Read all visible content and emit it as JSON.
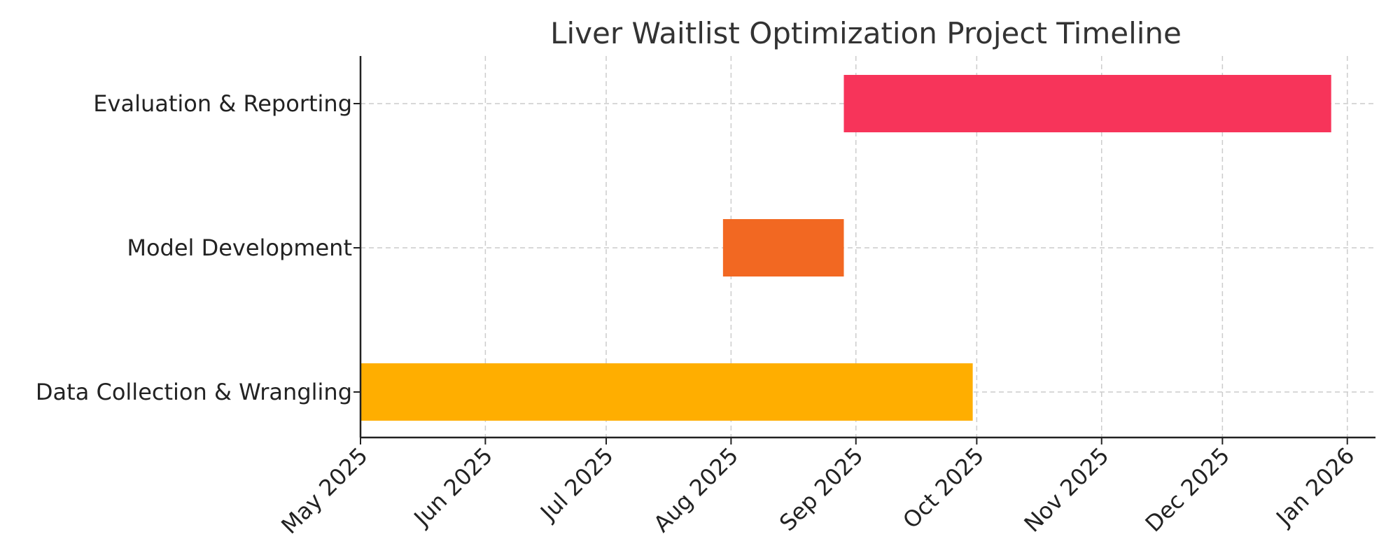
{
  "chart_data": {
    "type": "gantt",
    "title": "Liver Waitlist Optimization Project Timeline",
    "xlabel": "",
    "ylabel": "",
    "x_ticks": [
      "2025-05-01",
      "2025-06-01",
      "2025-07-01",
      "2025-08-01",
      "2025-09-01",
      "2025-10-01",
      "2025-11-01",
      "2025-12-01",
      "2026-01-01"
    ],
    "x_tick_labels": [
      "May 2025",
      "Jun 2025",
      "Jul 2025",
      "Aug 2025",
      "Sep 2025",
      "Oct 2025",
      "Nov 2025",
      "Dec 2025",
      "Jan 2026"
    ],
    "xlim": [
      "2025-05-01",
      "2026-01-08"
    ],
    "grid": true,
    "tasks": [
      {
        "name": "Data Collection & Wrangling",
        "start": "2025-05-01",
        "end": "2025-09-30",
        "color": "#FFAE00"
      },
      {
        "name": "Model Development",
        "start": "2025-07-30",
        "end": "2025-08-29",
        "color": "#F26822"
      },
      {
        "name": "Evaluation & Reporting",
        "start": "2025-08-29",
        "end": "2025-12-28",
        "color": "#F7345A"
      }
    ]
  }
}
